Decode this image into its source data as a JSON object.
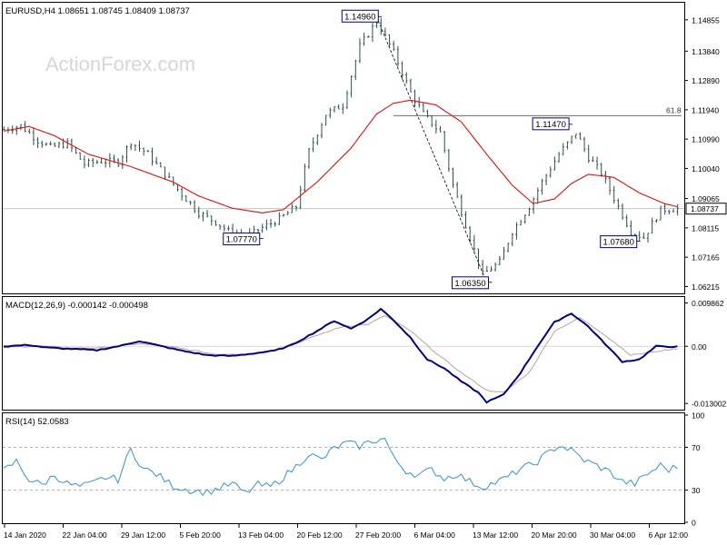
{
  "colors": {
    "candle": "#2f4f4f",
    "ma": "#dd1111",
    "macd_main": "#000080",
    "macd_signal": "#c0a0a0",
    "rsi": "#3a8fd0",
    "label_border": "#000080",
    "watermark": "#d7d7d7",
    "dashed_level": "#9a9a9a"
  },
  "main": {
    "title": "EURUSD,H4  1.08651 1.08745 1.08409 1.08737",
    "watermark": "ActionForex.com",
    "fib_label": "61.8",
    "current_price_label": "1.08737",
    "price_labels": [
      "1.14960",
      "1.11470",
      "1.07770",
      "1.07680",
      "1.06350"
    ],
    "yticks": [
      "1.14855",
      "1.13840",
      "1.12890",
      "1.11940",
      "1.10990",
      "1.10040",
      "1.09065",
      "1.08115",
      "1.07165",
      "1.06215"
    ]
  },
  "macd": {
    "title": "MACD(12,26,9) -0.000142 -0.000498",
    "yticks": [
      "0.009862",
      "0.00",
      "-0.013002"
    ]
  },
  "rsi": {
    "title": "RSI(14) 52.0583",
    "yticks": [
      "100",
      "70",
      "30",
      "0"
    ]
  },
  "xticks": [
    "14 Jan 2020",
    "22 Jan 04:00",
    "29 Jan 12:00",
    "5 Feb 20:00",
    "13 Feb 04:00",
    "20 Feb 12:00",
    "27 Feb 20:00",
    "6 Mar 04:00",
    "13 Mar 12:00",
    "20 Mar 20:00",
    "30 Mar 04:00",
    "6 Apr 12:00"
  ],
  "chart_data": [
    {
      "type": "candlestick",
      "title": "EURUSD,H4  1.08651 1.08745 1.08409 1.08737",
      "ylim": [
        1.0605,
        1.1535
      ],
      "close_path": [
        [
          0,
          1.113
        ],
        [
          4,
          1.1142
        ],
        [
          8,
          1.1095
        ],
        [
          11,
          1.1072
        ],
        [
          15,
          1.1085
        ],
        [
          19,
          1.1018
        ],
        [
          23,
          1.1028
        ],
        [
          27,
          1.1025
        ],
        [
          30,
          1.109
        ],
        [
          34,
          1.105
        ],
        [
          38,
          1.0985
        ],
        [
          42,
          1.092
        ],
        [
          46,
          1.086
        ],
        [
          50,
          1.083
        ],
        [
          53,
          1.08
        ],
        [
          57,
          1.078
        ],
        [
          61,
          1.0812
        ],
        [
          65,
          1.084
        ],
        [
          69,
          1.088
        ],
        [
          72,
          1.106
        ],
        [
          76,
          1.118
        ],
        [
          80,
          1.121
        ],
        [
          84,
          1.14
        ],
        [
          88,
          1.148
        ],
        [
          92,
          1.138
        ],
        [
          96,
          1.125
        ],
        [
          99,
          1.118
        ],
        [
          103,
          1.112
        ],
        [
          106,
          1.095
        ],
        [
          110,
          1.078
        ],
        [
          113,
          1.066
        ],
        [
          117,
          1.07
        ],
        [
          120,
          1.08
        ],
        [
          124,
          1.088
        ],
        [
          127,
          1.096
        ],
        [
          131,
          1.105
        ],
        [
          135,
          1.112
        ],
        [
          138,
          1.104
        ],
        [
          141,
          1.099
        ],
        [
          145,
          1.088
        ],
        [
          148,
          1.08
        ],
        [
          151,
          1.078
        ],
        [
          155,
          1.087
        ],
        [
          159,
          1.0874
        ]
      ],
      "moving_average": [
        [
          0,
          1.1125
        ],
        [
          6,
          1.114
        ],
        [
          12,
          1.111
        ],
        [
          20,
          1.105
        ],
        [
          30,
          1.101
        ],
        [
          40,
          1.096
        ],
        [
          46,
          1.0915
        ],
        [
          54,
          1.0875
        ],
        [
          61,
          1.086
        ],
        [
          66,
          1.087
        ],
        [
          74,
          1.096
        ],
        [
          82,
          1.107
        ],
        [
          88,
          1.118
        ],
        [
          92,
          1.1215
        ],
        [
          96,
          1.1225
        ],
        [
          102,
          1.121
        ],
        [
          108,
          1.1155
        ],
        [
          114,
          1.105
        ],
        [
          120,
          1.095
        ],
        [
          125,
          1.089
        ],
        [
          130,
          1.0905
        ],
        [
          134,
          1.0955
        ],
        [
          138,
          1.0985
        ],
        [
          144,
          1.0975
        ],
        [
          150,
          1.0925
        ],
        [
          156,
          1.089
        ],
        [
          159,
          1.088
        ]
      ],
      "labels": [
        {
          "text": "1.14960",
          "value": 1.1496,
          "at": 88
        },
        {
          "text": "1.11470",
          "value": 1.1147,
          "at": 133
        },
        {
          "text": "1.07770",
          "value": 1.0777,
          "at": 60
        },
        {
          "text": "1.07680",
          "value": 1.0768,
          "at": 149
        },
        {
          "text": "1.06350",
          "value": 1.0635,
          "at": 114
        }
      ],
      "fib_level": {
        "label": "61.8",
        "value": 1.1175
      },
      "current_price": 1.08737,
      "trend_line": [
        [
          88,
          1.1496
        ],
        [
          114,
          1.0635
        ]
      ]
    },
    {
      "type": "line",
      "title": "MACD(12,26,9) -0.000142 -0.000498",
      "ylim": [
        -0.014,
        0.0108
      ],
      "series": [
        {
          "values": [
            [
              0,
              0.0
            ],
            [
              6,
              0.0003
            ],
            [
              10,
              -0.0003
            ],
            [
              16,
              -0.0006
            ],
            [
              22,
              -0.0009
            ],
            [
              28,
              0.0002
            ],
            [
              32,
              0.0012
            ],
            [
              36,
              0.0003
            ],
            [
              42,
              -0.001
            ],
            [
              48,
              -0.002
            ],
            [
              54,
              -0.0022
            ],
            [
              60,
              -0.0015
            ],
            [
              64,
              -0.001
            ],
            [
              68,
              0.0003
            ],
            [
              74,
              0.0035
            ],
            [
              78,
              0.0058
            ],
            [
              82,
              0.004
            ],
            [
              86,
              0.0062
            ],
            [
              89,
              0.0085
            ],
            [
              92,
              0.006
            ],
            [
              96,
              0.002
            ],
            [
              100,
              -0.003
            ],
            [
              104,
              -0.005
            ],
            [
              108,
              -0.008
            ],
            [
              112,
              -0.0105
            ],
            [
              114,
              -0.0127
            ],
            [
              118,
              -0.011
            ],
            [
              122,
              -0.006
            ],
            [
              126,
              0.0
            ],
            [
              130,
              0.0055
            ],
            [
              134,
              0.0075
            ],
            [
              138,
              0.0045
            ],
            [
              142,
              0.0005
            ],
            [
              146,
              -0.0035
            ],
            [
              150,
              -0.003
            ],
            [
              154,
              0.0
            ],
            [
              159,
              -0.0001
            ]
          ]
        },
        {
          "values": [
            [
              0,
              -0.0003
            ],
            [
              8,
              0.0001
            ],
            [
              16,
              -0.0004
            ],
            [
              24,
              -0.0003
            ],
            [
              32,
              0.0006
            ],
            [
              40,
              -0.0002
            ],
            [
              50,
              -0.0018
            ],
            [
              58,
              -0.0017
            ],
            [
              66,
              -0.0005
            ],
            [
              74,
              0.0025
            ],
            [
              80,
              0.0045
            ],
            [
              86,
              0.005
            ],
            [
              90,
              0.007
            ],
            [
              96,
              0.0035
            ],
            [
              102,
              -0.0015
            ],
            [
              108,
              -0.006
            ],
            [
              114,
              -0.01
            ],
            [
              118,
              -0.0105
            ],
            [
              124,
              -0.006
            ],
            [
              130,
              0.0035
            ],
            [
              136,
              0.0065
            ],
            [
              142,
              0.0025
            ],
            [
              148,
              -0.002
            ],
            [
              154,
              -0.0012
            ],
            [
              159,
              -0.0005
            ]
          ]
        }
      ]
    },
    {
      "type": "line",
      "title": "RSI(14) 52.0583",
      "ylim": [
        0,
        100
      ],
      "levels": [
        30,
        70
      ],
      "series": [
        {
          "values": [
            [
              0,
              48
            ],
            [
              3,
              57
            ],
            [
              6,
              40
            ],
            [
              9,
              35
            ],
            [
              12,
              44
            ],
            [
              15,
              36
            ],
            [
              18,
              33
            ],
            [
              21,
              36
            ],
            [
              24,
              42
            ],
            [
              27,
              40
            ],
            [
              30,
              68
            ],
            [
              33,
              50
            ],
            [
              36,
              45
            ],
            [
              40,
              34
            ],
            [
              44,
              30
            ],
            [
              48,
              28
            ],
            [
              51,
              32
            ],
            [
              54,
              36
            ],
            [
              57,
              27
            ],
            [
              60,
              35
            ],
            [
              63,
              33
            ],
            [
              66,
              42
            ],
            [
              69,
              52
            ],
            [
              72,
              64
            ],
            [
              75,
              58
            ],
            [
              78,
              69
            ],
            [
              81,
              74
            ],
            [
              84,
              71
            ],
            [
              87,
              76
            ],
            [
              90,
              78
            ],
            [
              92,
              60
            ],
            [
              95,
              48
            ],
            [
              98,
              44
            ],
            [
              101,
              49
            ],
            [
              104,
              41
            ],
            [
              107,
              45
            ],
            [
              110,
              38
            ],
            [
              113,
              33
            ],
            [
              116,
              37
            ],
            [
              119,
              42
            ],
            [
              122,
              50
            ],
            [
              125,
              54
            ],
            [
              128,
              63
            ],
            [
              131,
              72
            ],
            [
              134,
              67
            ],
            [
              137,
              58
            ],
            [
              140,
              53
            ],
            [
              143,
              47
            ],
            [
              146,
              38
            ],
            [
              149,
              36
            ],
            [
              152,
              45
            ],
            [
              155,
              53
            ],
            [
              157,
              49
            ],
            [
              159,
              52
            ]
          ]
        }
      ]
    }
  ]
}
